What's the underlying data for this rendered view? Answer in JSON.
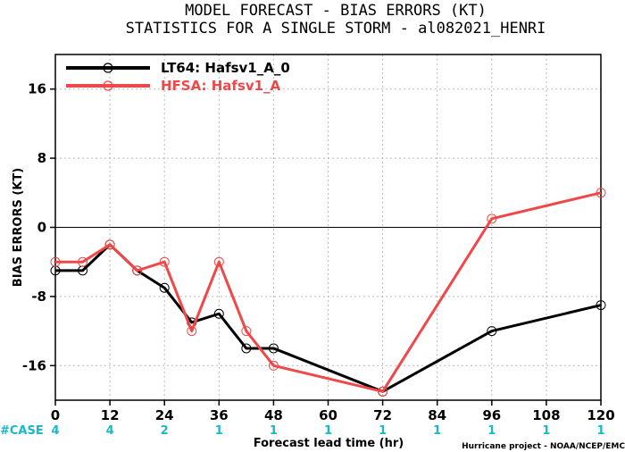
{
  "chart_data": {
    "type": "line",
    "title": "MODEL FORECAST - BIAS ERRORS (KT)",
    "subtitle": "STATISTICS FOR A SINGLE STORM - al082021_HENRI",
    "xlabel": "Forecast lead time (hr)",
    "ylabel": "BIAS ERRORS (KT)",
    "xlim": [
      0,
      120
    ],
    "ylim": [
      -20,
      20
    ],
    "x_ticks": [
      0,
      12,
      24,
      36,
      48,
      60,
      72,
      84,
      96,
      108,
      120
    ],
    "y_ticks": [
      16,
      8,
      0,
      -8,
      -16
    ],
    "grid": true,
    "legend_position": "top-left",
    "series": [
      {
        "name": "LT64: Hafsv1_A_0",
        "color": "#000000",
        "x": [
          0,
          6,
          12,
          18,
          24,
          30,
          36,
          42,
          48,
          72,
          96,
          120
        ],
        "y": [
          -5,
          -5,
          -2,
          -5,
          -7,
          -11,
          -10,
          -14,
          -14,
          -19,
          -12,
          -9
        ]
      },
      {
        "name": "HFSA: Hafsv1_A",
        "color": "#f04848",
        "x": [
          0,
          6,
          12,
          18,
          24,
          30,
          36,
          42,
          48,
          72,
          96,
          120
        ],
        "y": [
          -4,
          -4,
          -2,
          -5,
          -4,
          -12,
          -4,
          -12,
          -16,
          -19,
          1,
          4
        ]
      }
    ],
    "case_label": "#CASE",
    "case_counts": [
      {
        "x": 0,
        "n": "4"
      },
      {
        "x": 12,
        "n": "4"
      },
      {
        "x": 24,
        "n": "2"
      },
      {
        "x": 36,
        "n": "1"
      },
      {
        "x": 48,
        "n": "1"
      },
      {
        "x": 60,
        "n": "1"
      },
      {
        "x": 72,
        "n": "1"
      },
      {
        "x": 84,
        "n": "1"
      },
      {
        "x": 96,
        "n": "1"
      },
      {
        "x": 108,
        "n": "1"
      },
      {
        "x": 120,
        "n": "1"
      }
    ],
    "case_color": "#18b8c8",
    "credit": "Hurricane project - NOAA/NCEP/EMC"
  }
}
